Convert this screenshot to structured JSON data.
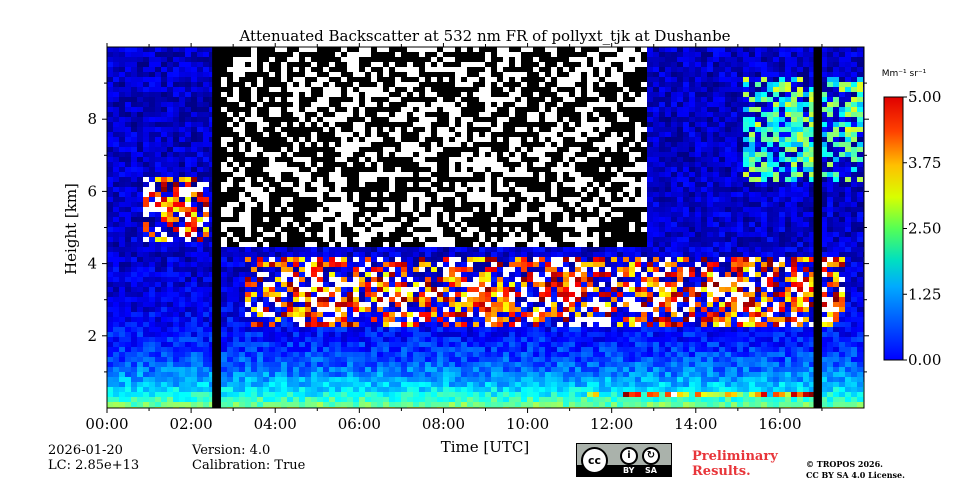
{
  "chart_data": {
    "type": "heatmap",
    "title": "Attenuated Backscatter at 532 nm FR of pollyxt_tjk at Dushanbe",
    "xlabel": "Time [UTC]",
    "ylabel": "Height [km]",
    "xlim": [
      0,
      18
    ],
    "ylim": [
      0,
      10
    ],
    "x_ticks": [
      0,
      2,
      4,
      6,
      8,
      10,
      12,
      14,
      16
    ],
    "x_tick_labels": [
      "00:00",
      "02:00",
      "04:00",
      "06:00",
      "08:00",
      "10:00",
      "12:00",
      "14:00",
      "16:00"
    ],
    "y_ticks": [
      2,
      4,
      6,
      8
    ],
    "y_tick_labels": [
      "2",
      "4",
      "6",
      "8"
    ],
    "colorbar": {
      "unit": "Mm⁻¹ sr⁻¹",
      "range": [
        0,
        5
      ],
      "ticks": [
        0,
        1.25,
        2.5,
        3.75,
        5
      ],
      "tick_labels": [
        "0.00",
        "1.25",
        "2.50",
        "3.75",
        "5.00"
      ],
      "colormap": "jet"
    },
    "features": {
      "no_data_periods_utc": [
        [
          2.5,
          2.7
        ],
        [
          16.8,
          17.0
        ]
      ],
      "noisy_region_above_km": 4.5,
      "aerosol_layers": [
        {
          "description": "elevated layer",
          "start_h": 3.3,
          "end_h": 17.5,
          "bottom_km": 2.2,
          "top_km": 4.2,
          "value": 5.0
        },
        {
          "description": "early cloud",
          "start_h": 0.8,
          "end_h": 2.4,
          "bottom_km": 4.6,
          "top_km": 6.4,
          "value": 5.0
        },
        {
          "description": "surface dense layer",
          "start_h": 11.3,
          "end_h": 17.0,
          "bottom_km": 0.25,
          "top_km": 0.5,
          "value": 4.3
        },
        {
          "description": "upper cirrus",
          "start_h": 15.1,
          "end_h": 18.0,
          "bottom_km": 6.3,
          "top_km": 9.2,
          "value": 2.5
        }
      ]
    }
  },
  "info": {
    "date": "2026-01-20",
    "lc": "LC: 2.85e+13",
    "version": "Version: 4.0",
    "calibration": "Calibration: True"
  },
  "badge": {
    "cc": "cc",
    "by": "BY",
    "sa": "SA"
  },
  "preliminary": {
    "line1": "Preliminary",
    "line2": "Results."
  },
  "copyright": {
    "line1": "© TROPOS 2026.",
    "line2": "CC BY SA 4.0 License."
  }
}
